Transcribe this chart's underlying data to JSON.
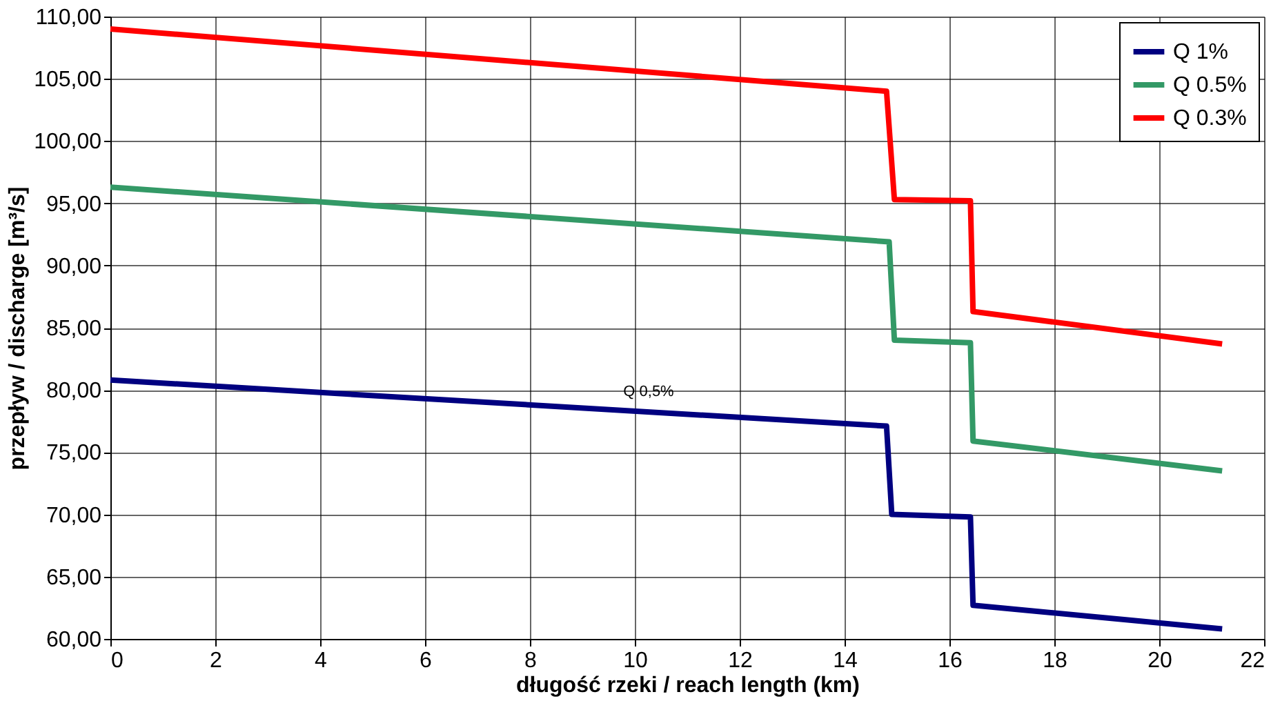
{
  "chart_data": {
    "type": "line",
    "xlabel": "długość rzeki / reach length (km)",
    "ylabel": "przepływ / discharge [m³/s]",
    "xlim": [
      0,
      22
    ],
    "xticks": [
      0,
      2,
      4,
      6,
      8,
      10,
      12,
      14,
      16,
      18,
      20,
      22
    ],
    "ylim": [
      60,
      110
    ],
    "yticks": [
      {
        "value": 60,
        "label": "60,00"
      },
      {
        "value": 65,
        "label": "65,00"
      },
      {
        "value": 70,
        "label": "70,00"
      },
      {
        "value": 75,
        "label": "75,00"
      },
      {
        "value": 80,
        "label": "80,00"
      },
      {
        "value": 85,
        "label": "85,00"
      },
      {
        "value": 90,
        "label": "90,00"
      },
      {
        "value": 95,
        "label": "95,00"
      },
      {
        "value": 100,
        "label": "100,00"
      },
      {
        "value": 105,
        "label": "105,00"
      },
      {
        "value": 110,
        "label": "110,00"
      }
    ],
    "grid": true,
    "legend": "top right",
    "marker": "none",
    "line_style": "solid",
    "annotations": [
      "Q 0,5%"
    ],
    "series": [
      {
        "name": "Q 1%",
        "color": "#000080",
        "x": [
          0,
          14.8,
          14.9,
          16.4,
          16.45,
          21.2
        ],
        "values": [
          80.8,
          77.1,
          70.0,
          69.8,
          62.7,
          60.8
        ]
      },
      {
        "name": "Q 0.5%",
        "color": "#339966",
        "x": [
          0,
          14.85,
          14.95,
          16.4,
          16.45,
          21.2
        ],
        "values": [
          96.3,
          91.9,
          84.0,
          83.8,
          75.9,
          73.5
        ]
      },
      {
        "name": "Q 0.3%",
        "color": "#ff0000",
        "x": [
          0,
          14.8,
          14.95,
          16.4,
          16.45,
          21.2
        ],
        "values": [
          109.0,
          104.0,
          95.3,
          95.2,
          86.3,
          83.7
        ]
      }
    ]
  }
}
